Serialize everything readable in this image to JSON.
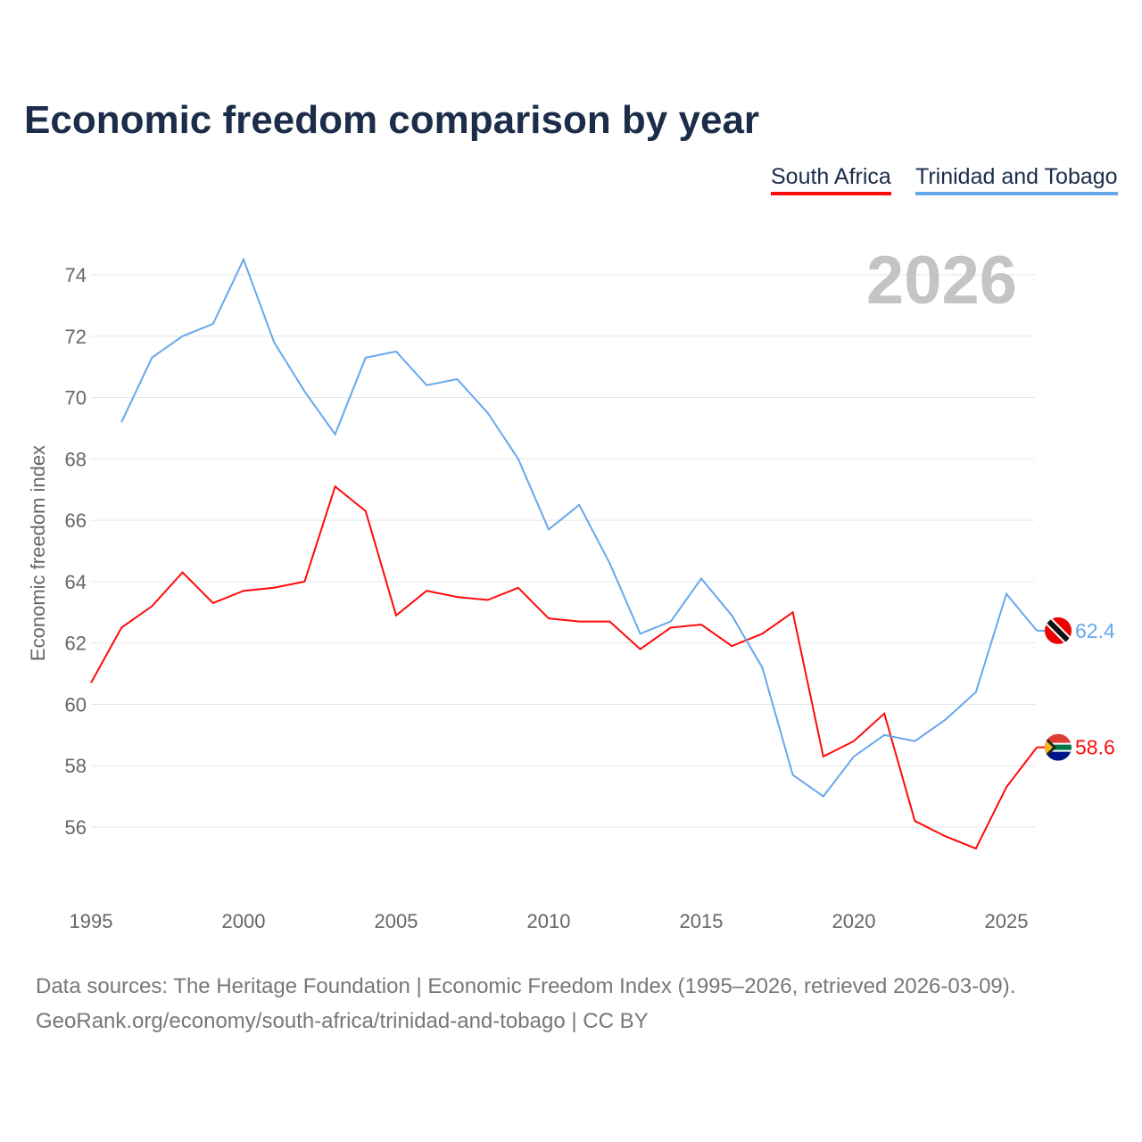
{
  "title": "Economic freedom comparison by year",
  "footer": {
    "line1": "Data sources: The Heritage Foundation | Economic Freedom Index (1995–2026, retrieved 2026-03-09).",
    "line2": "GeoRank.org/economy/south-africa/trinidad-and-tobago | CC BY"
  },
  "chart_data": {
    "type": "line",
    "title": "Economic freedom comparison by year",
    "watermark_year": "2026",
    "xlabel": "",
    "ylabel": "Economic freedom index",
    "xlim": [
      1995,
      2026
    ],
    "ylim": [
      54,
      75
    ],
    "x_ticks": [
      "1995",
      "2000",
      "2005",
      "2010",
      "2015",
      "2020",
      "2025"
    ],
    "y_ticks": [
      "56",
      "58",
      "60",
      "62",
      "64",
      "66",
      "68",
      "70",
      "72",
      "74"
    ],
    "grid": true,
    "legend_position": "top-right",
    "series": [
      {
        "name": "South Africa",
        "color": "#ff0a0a",
        "end_label": "58.6",
        "x": [
          1995,
          1996,
          1997,
          1998,
          1999,
          2000,
          2001,
          2002,
          2003,
          2004,
          2005,
          2006,
          2007,
          2008,
          2009,
          2010,
          2011,
          2012,
          2013,
          2014,
          2015,
          2016,
          2017,
          2018,
          2019,
          2020,
          2021,
          2022,
          2023,
          2024,
          2025,
          2026
        ],
        "values": [
          60.7,
          62.5,
          63.2,
          64.3,
          63.3,
          63.7,
          63.8,
          64.0,
          67.1,
          66.3,
          62.9,
          63.7,
          63.5,
          63.4,
          63.8,
          62.8,
          62.7,
          62.7,
          61.8,
          62.5,
          62.6,
          61.9,
          62.3,
          63.0,
          58.3,
          58.8,
          59.7,
          56.2,
          55.7,
          55.3,
          57.3,
          58.6
        ]
      },
      {
        "name": "Trinidad and Tobago",
        "color": "#66a8ee",
        "end_label": "62.4",
        "x": [
          1996,
          1997,
          1998,
          1999,
          2000,
          2001,
          2002,
          2003,
          2004,
          2005,
          2006,
          2007,
          2008,
          2009,
          2010,
          2011,
          2012,
          2013,
          2014,
          2015,
          2016,
          2017,
          2018,
          2019,
          2020,
          2021,
          2022,
          2023,
          2024,
          2025,
          2026
        ],
        "values": [
          69.2,
          71.3,
          72.0,
          72.4,
          74.5,
          71.8,
          70.2,
          68.8,
          71.3,
          71.5,
          70.4,
          70.6,
          69.5,
          68.0,
          65.7,
          66.5,
          64.6,
          62.3,
          62.7,
          64.1,
          62.9,
          61.2,
          57.7,
          57.0,
          58.3,
          59.0,
          58.8,
          59.5,
          60.4,
          63.6,
          62.4
        ]
      }
    ]
  }
}
